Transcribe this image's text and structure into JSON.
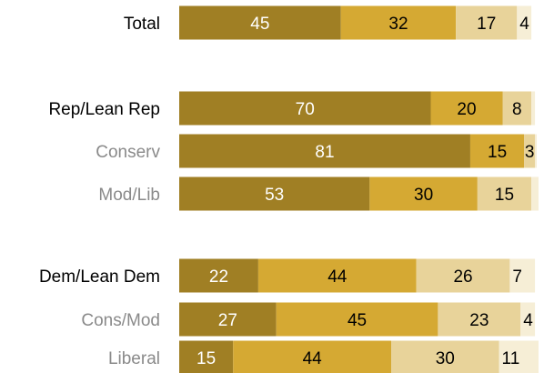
{
  "chart_data": {
    "type": "bar",
    "orientation": "horizontal",
    "stacked": true,
    "xlim": [
      0,
      100
    ],
    "legend": "none",
    "categories": [
      "Total",
      "Rep/Lean Rep",
      "Conserv",
      "Mod/Lib",
      "Dem/Lean Dem",
      "Cons/Mod",
      "Liberal"
    ],
    "category_level": [
      "main",
      "main",
      "sub",
      "sub",
      "main",
      "sub",
      "sub"
    ],
    "series": [
      {
        "values": [
          45,
          70,
          81,
          53,
          22,
          27,
          15
        ],
        "color": "#a07f24"
      },
      {
        "values": [
          32,
          20,
          15,
          30,
          44,
          45,
          44
        ],
        "color": "#d5a933"
      },
      {
        "values": [
          17,
          8,
          3,
          15,
          26,
          23,
          30
        ],
        "color": "#e8d39a"
      },
      {
        "values": [
          4,
          1,
          0.5,
          2,
          7,
          4,
          11
        ],
        "color": "#f6eed6"
      }
    ],
    "data_labels": [
      [
        "45",
        "32",
        "17",
        "4"
      ],
      [
        "70",
        "20",
        "8",
        ""
      ],
      [
        "81",
        "15",
        "3",
        ""
      ],
      [
        "53",
        "30",
        "15",
        ""
      ],
      [
        "22",
        "44",
        "26",
        "7"
      ],
      [
        "27",
        "45",
        "23",
        "4"
      ],
      [
        "15",
        "44",
        "30",
        "11"
      ]
    ],
    "label_colors": {
      "main": "#000000",
      "sub": "#8a8a8a",
      "on_dark": "#ffffff",
      "on_light": "#000000"
    }
  }
}
